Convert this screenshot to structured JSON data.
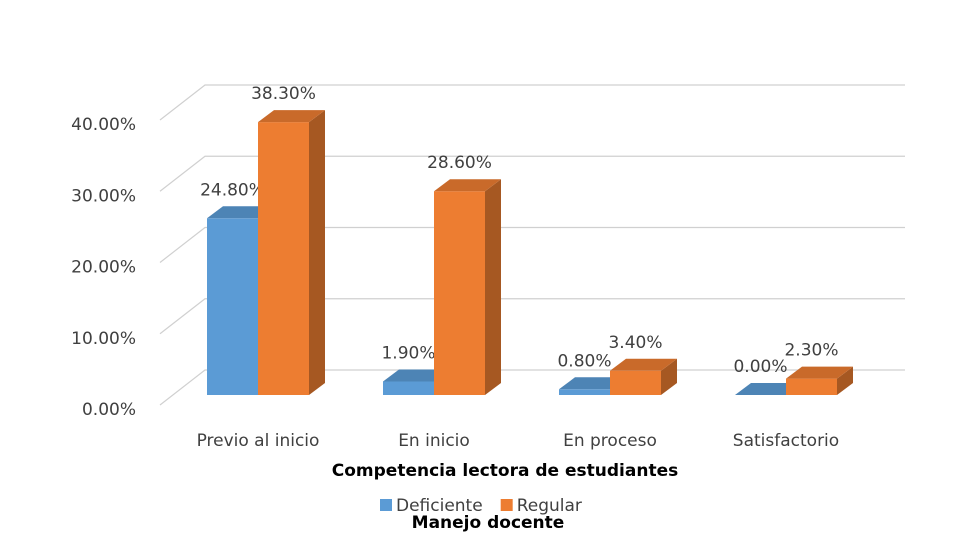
{
  "chart_data": {
    "type": "bar3d",
    "categories": [
      "Previo al inicio",
      "En inicio",
      "En proceso",
      "Satisfactorio"
    ],
    "series": [
      {
        "name": "Deficiente",
        "color": "#5b9bd5",
        "values": [
          24.8,
          1.9,
          0.8,
          0.0
        ],
        "value_labels": [
          "24.80%",
          "1.90%",
          "0.80%",
          "0.00%"
        ]
      },
      {
        "name": "Regular",
        "color": "#ed7d31",
        "values": [
          38.3,
          28.6,
          3.4,
          2.3
        ],
        "value_labels": [
          "38.30%",
          "28.60%",
          "3.40%",
          "2.30%"
        ]
      }
    ],
    "ylim": [
      0,
      40
    ],
    "yticks": [
      {
        "value": 0,
        "label": "0.00%"
      },
      {
        "value": 10,
        "label": "10.00%"
      },
      {
        "value": 20,
        "label": "20.00%"
      },
      {
        "value": 30,
        "label": "30.00%"
      },
      {
        "value": 40,
        "label": "40.00%"
      }
    ],
    "grid": true,
    "xlabel": "Competencia lectora de estudiantes",
    "legend_title": "Manejo docente",
    "legend": "bottom"
  }
}
